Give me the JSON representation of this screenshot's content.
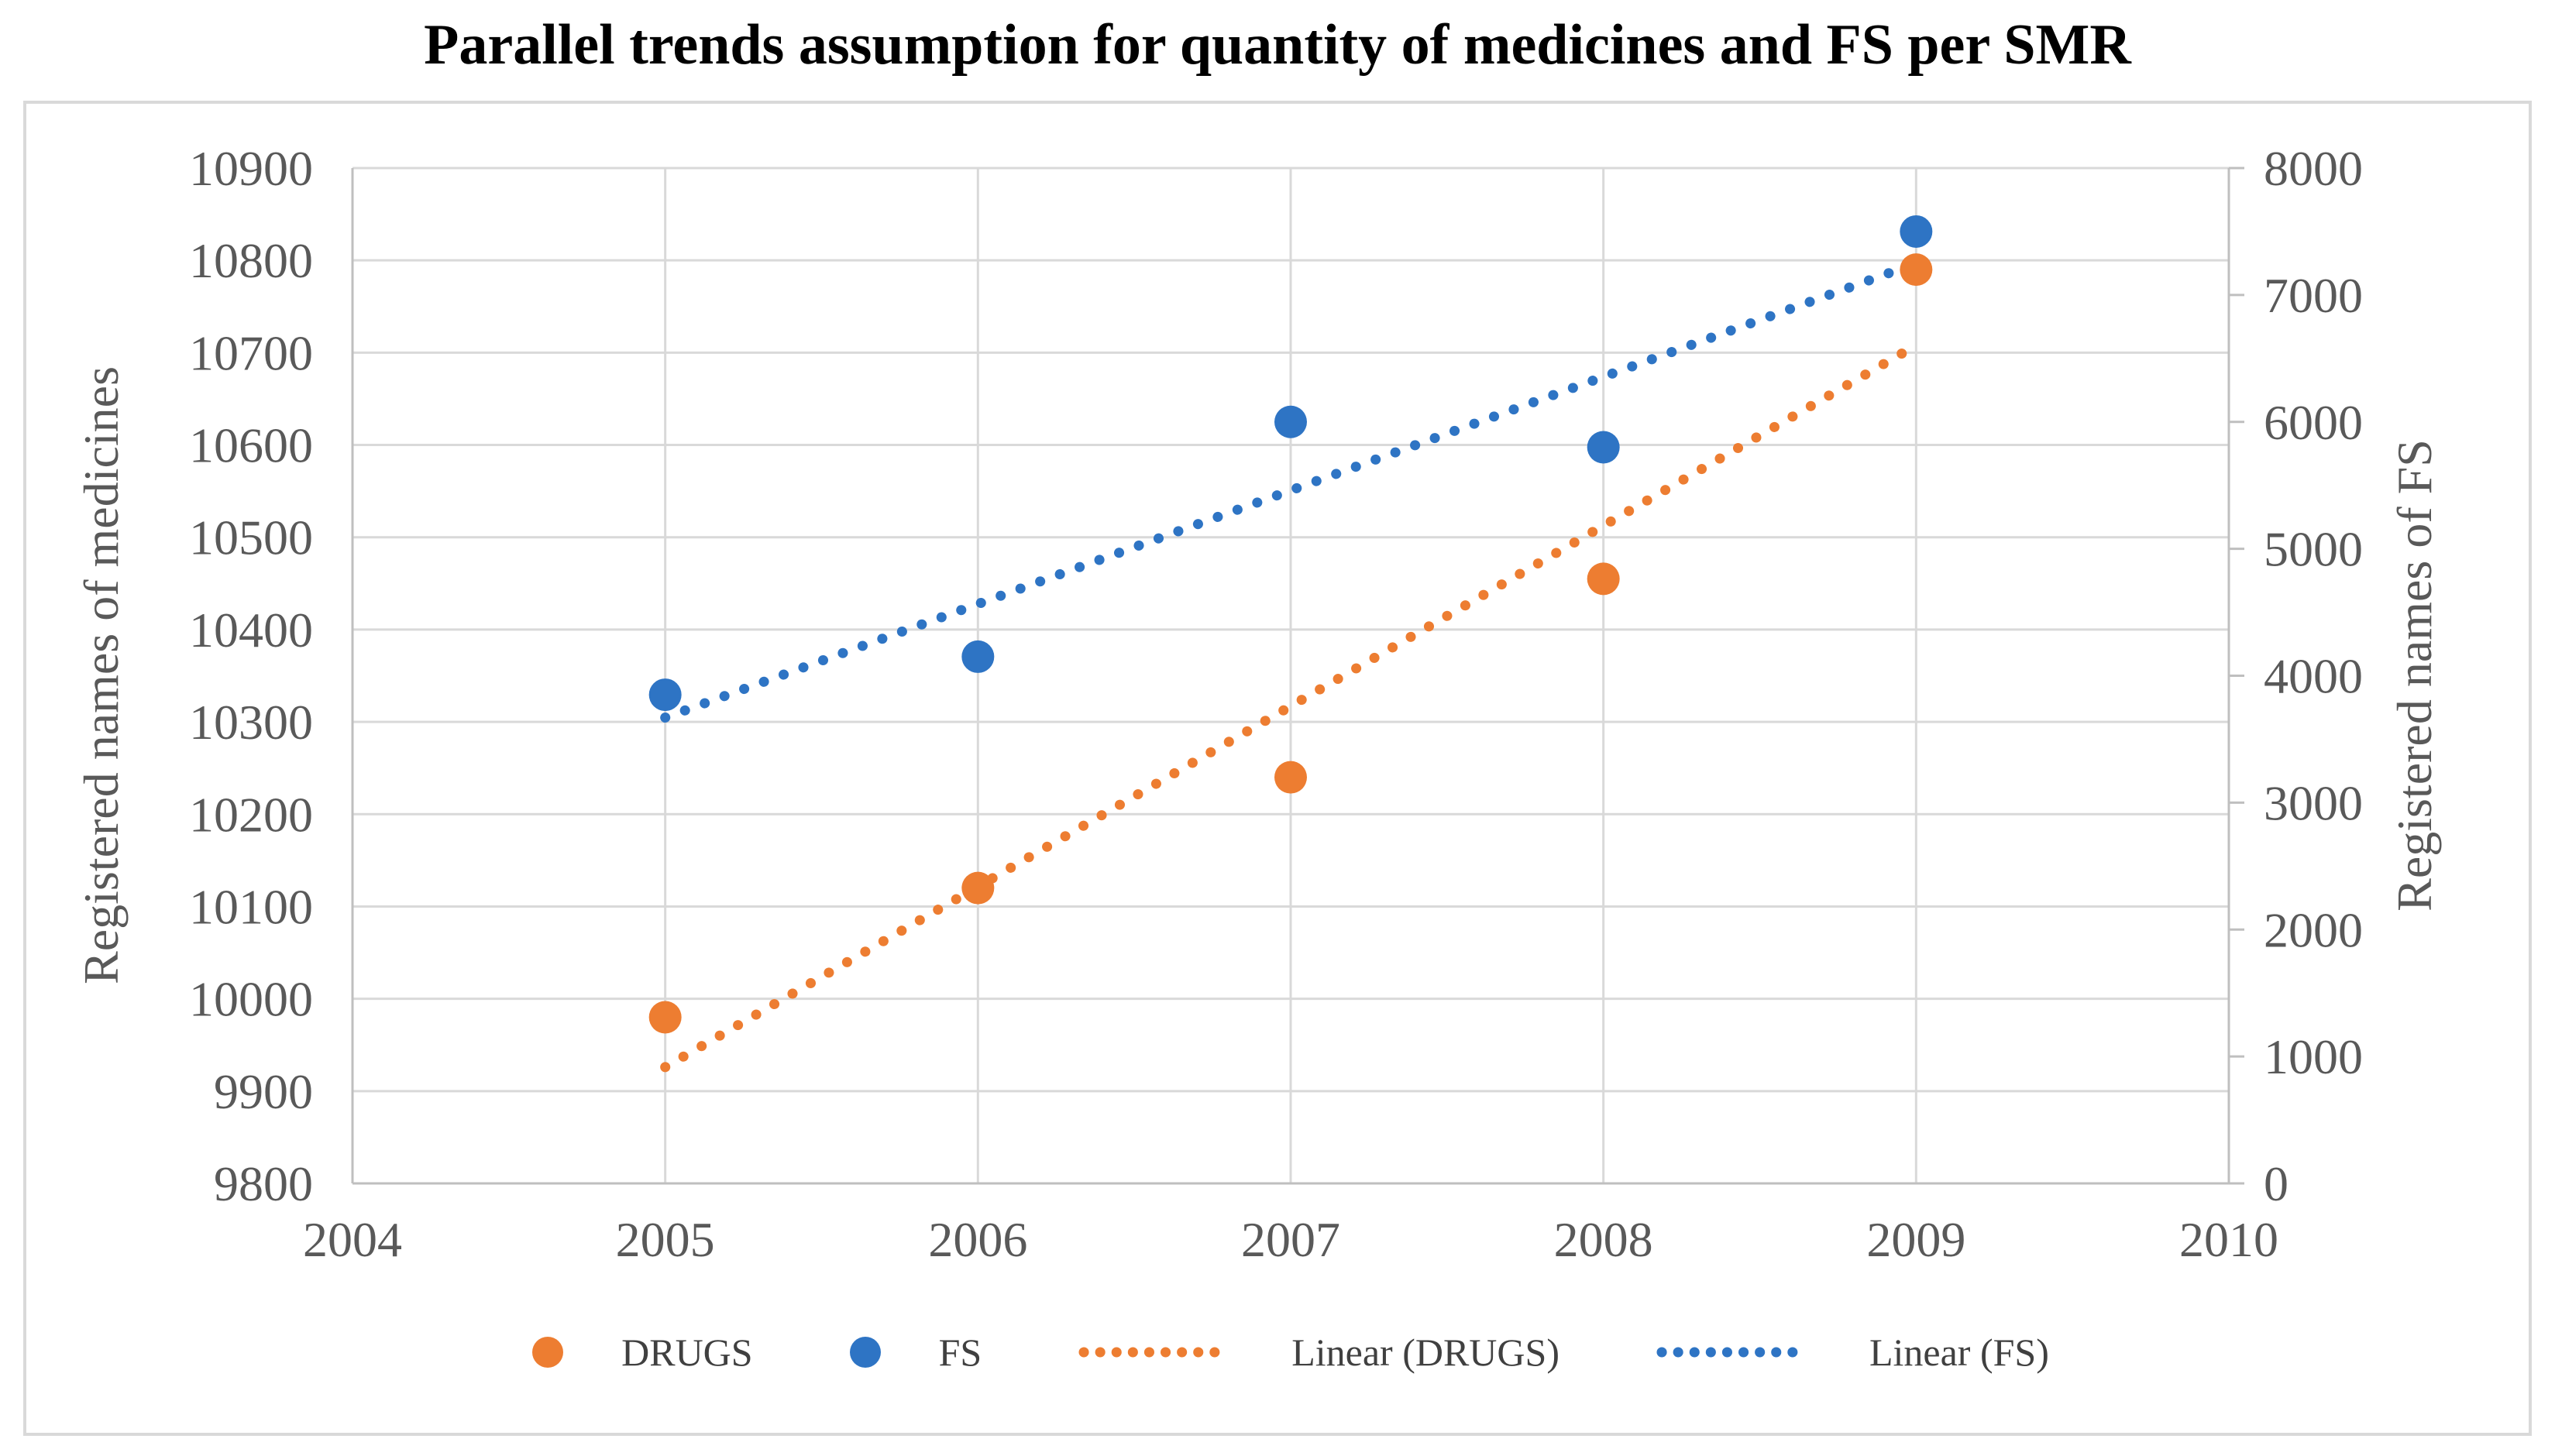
{
  "title": "Parallel trends assumption for quantity of medicines and FS per SMR",
  "colors": {
    "drugs_orange": "#ED7D31",
    "fs_blue": "#2E74C4",
    "gridline": "#D9D9D9",
    "axis_line": "#BFBFBF",
    "tick_text": "#595959",
    "legend_text": "#404040",
    "title_text": "#000000"
  },
  "axes": {
    "x": {
      "tick_labels": [
        "2004",
        "2005",
        "2006",
        "2007",
        "2008",
        "2009",
        "2010"
      ],
      "min": 2004,
      "max": 2010
    },
    "y_left": {
      "title": "Registered names of medicines",
      "min": 9800,
      "max": 10900,
      "step": 100,
      "tick_labels": [
        "9800",
        "9900",
        "10000",
        "10100",
        "10200",
        "10300",
        "10400",
        "10500",
        "10600",
        "10700",
        "10800",
        "10900"
      ]
    },
    "y_right": {
      "title": "Registered names of FS",
      "min": 0,
      "max": 8000,
      "step": 1000,
      "tick_labels": [
        "0",
        "1000",
        "2000",
        "3000",
        "4000",
        "5000",
        "6000",
        "7000",
        "8000"
      ]
    }
  },
  "legend": {
    "items": [
      {
        "label": "DRUGS",
        "type": "marker",
        "color": "#ED7D31"
      },
      {
        "label": "FS",
        "type": "marker",
        "color": "#2E74C4"
      },
      {
        "label": "Linear (DRUGS)",
        "type": "dotted-line",
        "color": "#ED7D31"
      },
      {
        "label": "Linear (FS)",
        "type": "dotted-line",
        "color": "#2E74C4"
      }
    ]
  },
  "chart_data": {
    "type": "scatter",
    "title": "Parallel trends assumption for quantity of medicines and FS per SMR",
    "x": [
      2005,
      2006,
      2007,
      2008,
      2009
    ],
    "xlim": [
      2004,
      2010
    ],
    "grid": true,
    "legend_position": "bottom",
    "y_left_label": "Registered names of medicines",
    "y_left_lim": [
      9800,
      10900
    ],
    "y_right_label": "Registered names of FS",
    "y_right_lim": [
      0,
      8000
    ],
    "series": [
      {
        "name": "DRUGS",
        "kind": "points",
        "axis": "left",
        "color": "#ED7D31",
        "values": [
          9980,
          10120,
          10240,
          10455,
          10790
        ]
      },
      {
        "name": "FS",
        "kind": "points",
        "axis": "right",
        "color": "#2E74C4",
        "values": [
          3850,
          4150,
          6000,
          5800,
          7500
        ]
      },
      {
        "name": "Linear (DRUGS)",
        "kind": "linear_trendline",
        "of": "DRUGS",
        "axis": "left",
        "color": "#ED7D31",
        "style": "dotted"
      },
      {
        "name": "Linear (FS)",
        "kind": "linear_trendline",
        "of": "FS",
        "axis": "right",
        "color": "#2E74C4",
        "style": "dotted"
      }
    ]
  }
}
